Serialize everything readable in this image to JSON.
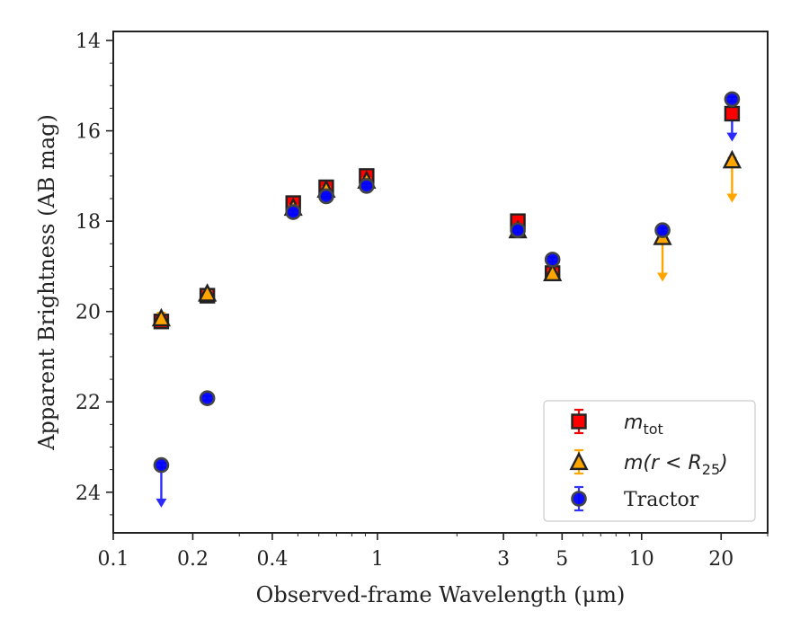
{
  "chart_data": {
    "type": "scatter",
    "xlabel": "Observed-frame Wavelength (μm)",
    "ylabel": "Apparent Brightness (AB mag)",
    "xscale": "log",
    "xlim": [
      0.1,
      30
    ],
    "ylim": [
      24.9,
      13.8
    ],
    "y_inverted": true,
    "x_ticks": [
      0.1,
      0.2,
      0.4,
      1,
      3,
      5,
      10,
      20
    ],
    "x_tick_labels": [
      "0.1",
      "0.2",
      "0.4",
      "1",
      "3",
      "5",
      "10",
      "20"
    ],
    "y_ticks": [
      14,
      16,
      18,
      20,
      22,
      24
    ],
    "y_tick_labels": [
      "14",
      "16",
      "18",
      "20",
      "22",
      "24"
    ],
    "grid": false,
    "legend": {
      "placement": "bottom-right",
      "entries": [
        {
          "label_main": "m",
          "label_sub": "tot",
          "marker": "square",
          "color": "#ff0000"
        },
        {
          "label_main": "m(r < R",
          "label_sub": "25",
          "label_tail": ")",
          "marker": "triangle",
          "color": "#ffa500"
        },
        {
          "label_main": "Tractor",
          "marker": "circle",
          "color": "#0000ff"
        }
      ]
    },
    "series": [
      {
        "name": "m_tot",
        "marker": "square",
        "face_color": "#ff0000",
        "errbar_color": "#ff0000",
        "points": [
          {
            "x": 0.152,
            "y": 20.22,
            "err": 0.1
          },
          {
            "x": 0.227,
            "y": 19.65,
            "err": 0.05
          },
          {
            "x": 0.48,
            "y": 17.6,
            "err": 0.1
          },
          {
            "x": 0.64,
            "y": 17.25,
            "err": 0.1
          },
          {
            "x": 0.91,
            "y": 17.0,
            "err": 0.1
          },
          {
            "x": 3.4,
            "y": 18.0,
            "err": 0.1
          },
          {
            "x": 4.6,
            "y": 19.15,
            "err": 0.05
          },
          {
            "x": 22.0,
            "y": 15.62,
            "err": 0.05,
            "upper_limit": true,
            "arrow_to": 16.2
          }
        ]
      },
      {
        "name": "m(r < R25)",
        "marker": "triangle",
        "face_color": "#ffa500",
        "errbar_color": "#ffa500",
        "points": [
          {
            "x": 0.152,
            "y": 20.15,
            "err": 0.12
          },
          {
            "x": 0.227,
            "y": 19.6,
            "err": 0.05
          },
          {
            "x": 0.48,
            "y": 17.7,
            "err": 0.05
          },
          {
            "x": 0.64,
            "y": 17.3,
            "err": 0.05
          },
          {
            "x": 0.91,
            "y": 17.1,
            "err": 0.05
          },
          {
            "x": 3.4,
            "y": 18.2,
            "err": 0.05
          },
          {
            "x": 4.6,
            "y": 19.15,
            "err": 0.05
          },
          {
            "x": 12.0,
            "y": 18.35,
            "err": 0.05,
            "upper_limit": true,
            "arrow_to": 19.3
          },
          {
            "x": 22.0,
            "y": 16.65,
            "err": 0.05,
            "upper_limit": true,
            "arrow_to": 17.55
          }
        ]
      },
      {
        "name": "Tractor",
        "marker": "circle",
        "face_color": "#0000ff",
        "errbar_color": "#3333ff",
        "points": [
          {
            "x": 0.152,
            "y": 23.4,
            "err": 0.05,
            "upper_limit": true,
            "arrow_to": 24.3
          },
          {
            "x": 0.227,
            "y": 21.92,
            "err": 0.05
          },
          {
            "x": 0.48,
            "y": 17.8,
            "err": 0.05
          },
          {
            "x": 0.64,
            "y": 17.45,
            "err": 0.05
          },
          {
            "x": 0.91,
            "y": 17.22,
            "err": 0.05
          },
          {
            "x": 3.4,
            "y": 18.2,
            "err": 0.05
          },
          {
            "x": 4.6,
            "y": 18.85,
            "err": 0.05
          },
          {
            "x": 12.0,
            "y": 18.2,
            "err": 0.05
          },
          {
            "x": 22.0,
            "y": 15.3,
            "err": 0.05
          }
        ]
      }
    ]
  }
}
